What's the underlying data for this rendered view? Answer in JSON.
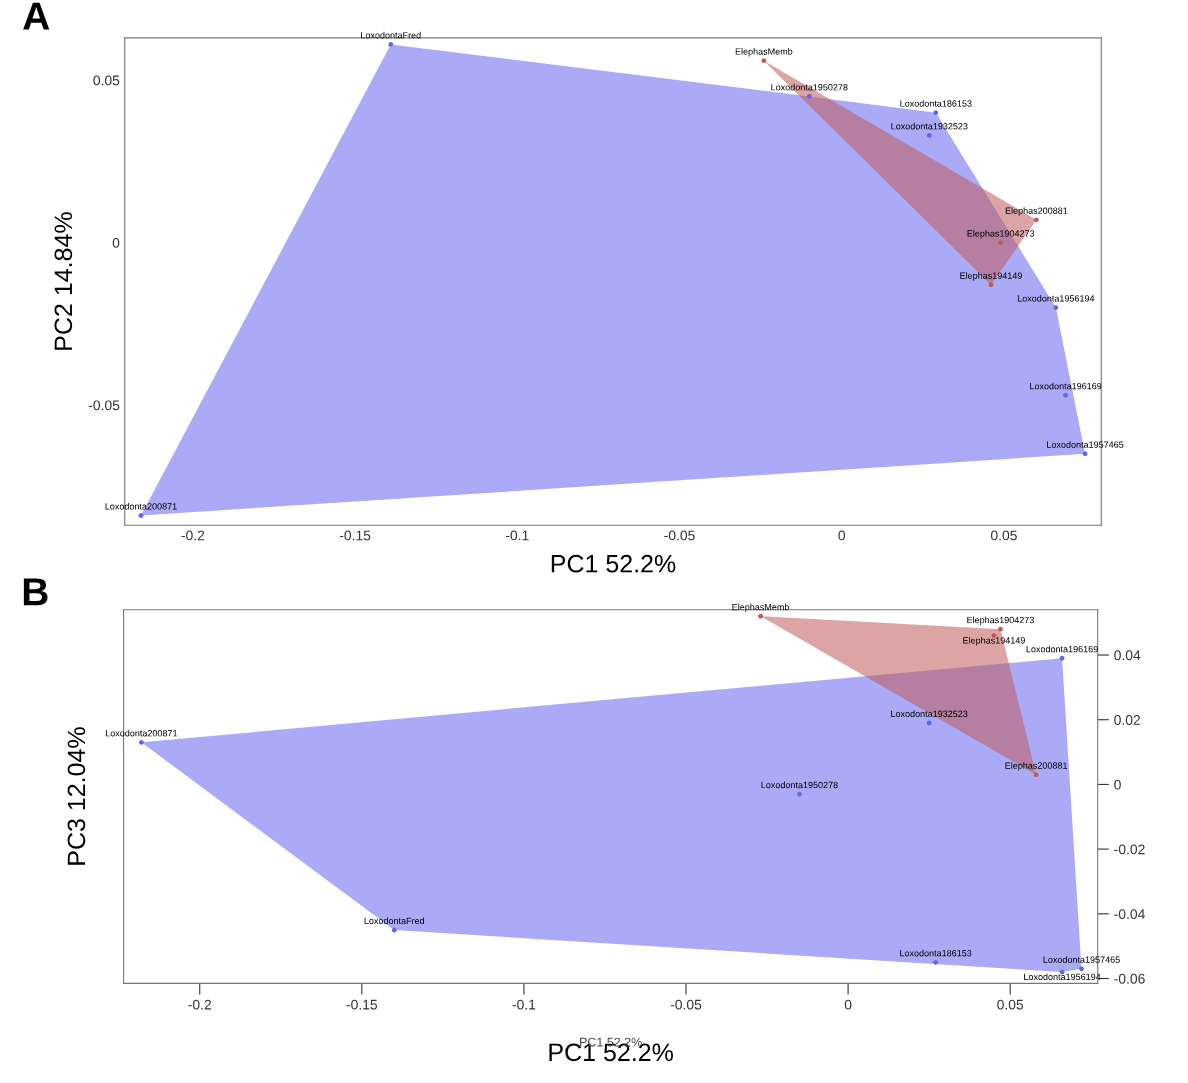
{
  "chart_data": [
    {
      "type": "scatter",
      "title": "A",
      "xlabel": "PC1 52.2%",
      "ylabel": "PC2 14.84%",
      "xlim": [
        -0.221,
        0.08
      ],
      "ylim": [
        -0.087,
        0.063
      ],
      "xticks": [
        -0.2,
        -0.15,
        -0.1,
        -0.05,
        0,
        0.05
      ],
      "yticks": [
        -0.05,
        0,
        0.05
      ],
      "grid": false,
      "marker": "circle",
      "series": [
        {
          "color": "#6464f0",
          "x": [
            -0.139,
            -0.01,
            0.029,
            0.027,
            0.066,
            0.069,
            0.075,
            -0.216
          ],
          "values": [
            0.061,
            0.045,
            0.04,
            0.033,
            -0.02,
            -0.047,
            -0.065,
            -0.084
          ]
        },
        {
          "color": "#c05a5a",
          "x": [
            -0.024,
            0.06,
            0.049,
            0.046
          ],
          "values": [
            0.056,
            0.007,
            0.0,
            -0.013
          ]
        }
      ],
      "annotations": [
        {
          "text": "LoxodontaFred",
          "x": -0.139,
          "y": 0.061
        },
        {
          "text": "Loxodonta1950278",
          "x": -0.01,
          "y": 0.045
        },
        {
          "text": "Loxodonta186153",
          "x": 0.029,
          "y": 0.04
        },
        {
          "text": "Loxodonta1932523",
          "x": 0.027,
          "y": 0.033
        },
        {
          "text": "Loxodonta1956194",
          "x": 0.066,
          "y": -0.02
        },
        {
          "text": "Loxodonta196169",
          "x": 0.069,
          "y": -0.047
        },
        {
          "text": "Loxodonta1957465",
          "x": 0.075,
          "y": -0.065
        },
        {
          "text": "Loxodonta200871",
          "x": -0.216,
          "y": -0.084
        },
        {
          "text": "ElephasMemb",
          "x": -0.024,
          "y": 0.056
        },
        {
          "text": "Elephas200881",
          "x": 0.06,
          "y": 0.007
        },
        {
          "text": "Elephas1904273",
          "x": 0.049,
          "y": 0.0
        },
        {
          "text": "Elephas194149",
          "x": 0.046,
          "y": -0.013
        }
      ]
    },
    {
      "type": "scatter",
      "title": "B",
      "xlabel": "PC1 52.2%",
      "ylabel": "PC3 12.04%",
      "xlim": [
        -0.2235,
        0.077
      ],
      "ylim": [
        -0.0615,
        0.054
      ],
      "xticks": [
        -0.2,
        -0.15,
        -0.1,
        -0.05,
        0,
        0.05
      ],
      "yticks": [
        -0.06,
        -0.04,
        -0.02,
        0,
        0.02,
        0.04
      ],
      "grid": false,
      "marker": "circle",
      "series": [
        {
          "color": "#6464f0",
          "x": [
            0.066,
            0.025,
            -0.015,
            0.027,
            0.072,
            0.066,
            -0.218,
            -0.14
          ],
          "values": [
            0.039,
            0.019,
            -0.003,
            -0.055,
            -0.057,
            -0.058,
            0.013,
            -0.045
          ]
        },
        {
          "color": "#c05a5a",
          "x": [
            -0.027,
            0.047,
            0.045,
            0.058
          ],
          "values": [
            0.052,
            0.048,
            0.046,
            0.003
          ]
        }
      ],
      "annotations": [
        {
          "text": "Loxodonta196169",
          "x": 0.066,
          "y": 0.039
        },
        {
          "text": "Loxodonta1932523",
          "x": 0.025,
          "y": 0.019
        },
        {
          "text": "Loxodonta1950278",
          "x": -0.015,
          "y": -0.003
        },
        {
          "text": "Loxodonta186153",
          "x": 0.027,
          "y": -0.055
        },
        {
          "text": "Loxodonta1957465",
          "x": 0.072,
          "y": -0.057
        },
        {
          "text": "Loxodonta1956194",
          "x": 0.066,
          "y": -0.058
        },
        {
          "text": "Loxodonta200871",
          "x": -0.218,
          "y": 0.013
        },
        {
          "text": "LoxodontaFred",
          "x": -0.14,
          "y": -0.045
        },
        {
          "text": "ElephasMemb",
          "x": -0.027,
          "y": 0.052
        },
        {
          "text": "Elephas1904273",
          "x": 0.047,
          "y": 0.048
        },
        {
          "text": "Elephas194149",
          "x": 0.045,
          "y": 0.046
        },
        {
          "text": "Elephas200881",
          "x": 0.058,
          "y": 0.003
        },
        "PC1 52.2%"
      ]
    }
  ]
}
